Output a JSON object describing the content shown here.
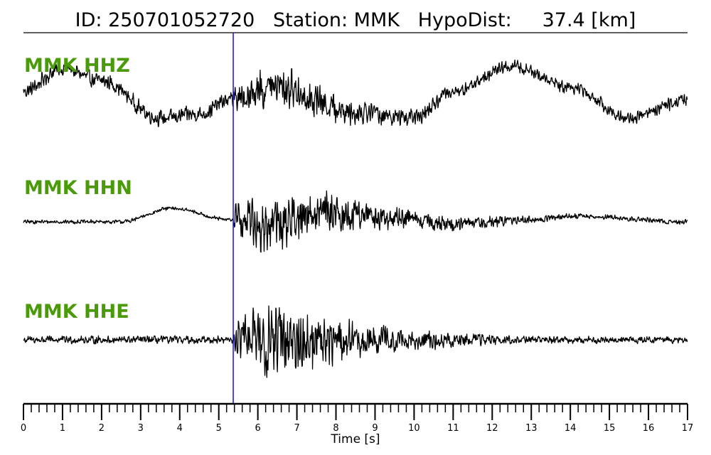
{
  "title": "ID: 250701052720   Station: MMK   HypoDist:     37.4 [km]",
  "chart_data": {
    "type": "line",
    "xlabel": "Time [s]",
    "xlim": [
      0,
      17
    ],
    "x_ticks": [
      "0",
      "1",
      "2",
      "3",
      "4",
      "5",
      "6",
      "7",
      "8",
      "9",
      "10",
      "11",
      "12",
      "13",
      "14",
      "15",
      "16",
      "17"
    ],
    "minor_tick_step": 0.2,
    "pick_time": 5.37,
    "pick_color": "#1f1fd6",
    "label_color": "#4a9a0a",
    "trace_color": "#000000",
    "series": [
      {
        "name": "MMK HHZ",
        "noise_before": 0.22,
        "coda_amp": 0.55,
        "coda_decay": 0.28,
        "coda_floor": 0.18,
        "long_period": [
          {
            "t": 0.0,
            "v": 0.2
          },
          {
            "t": 1.0,
            "v": 0.75
          },
          {
            "t": 2.0,
            "v": 0.45
          },
          {
            "t": 3.5,
            "v": -0.45
          },
          {
            "t": 4.5,
            "v": -0.35
          },
          {
            "t": 5.3,
            "v": 0.0
          },
          {
            "t": 6.5,
            "v": 0.3
          },
          {
            "t": 8.5,
            "v": -0.3
          },
          {
            "t": 10.0,
            "v": -0.45
          },
          {
            "t": 11.0,
            "v": 0.2
          },
          {
            "t": 12.5,
            "v": 0.8
          },
          {
            "t": 14.0,
            "v": 0.3
          },
          {
            "t": 15.5,
            "v": -0.45
          },
          {
            "t": 17.0,
            "v": 0.0
          }
        ]
      },
      {
        "name": "MMK HHN",
        "noise_before": 0.06,
        "coda_amp": 0.85,
        "coda_decay": 0.33,
        "coda_floor": 0.08,
        "long_period": [
          {
            "t": 0.0,
            "v": 0.0
          },
          {
            "t": 2.5,
            "v": 0.0
          },
          {
            "t": 3.8,
            "v": 0.35
          },
          {
            "t": 5.3,
            "v": 0.05
          },
          {
            "t": 6.5,
            "v": -0.1
          },
          {
            "t": 7.5,
            "v": 0.25
          },
          {
            "t": 9.5,
            "v": 0.1
          },
          {
            "t": 11.0,
            "v": -0.05
          },
          {
            "t": 13.0,
            "v": 0.05
          },
          {
            "t": 14.0,
            "v": 0.15
          },
          {
            "t": 17.0,
            "v": 0.0
          }
        ]
      },
      {
        "name": "MMK HHE",
        "noise_before": 0.11,
        "coda_amp": 1.0,
        "coda_decay": 0.38,
        "coda_floor": 0.1,
        "long_period": [
          {
            "t": 0.0,
            "v": 0.0
          },
          {
            "t": 17.0,
            "v": 0.0
          }
        ]
      }
    ]
  }
}
